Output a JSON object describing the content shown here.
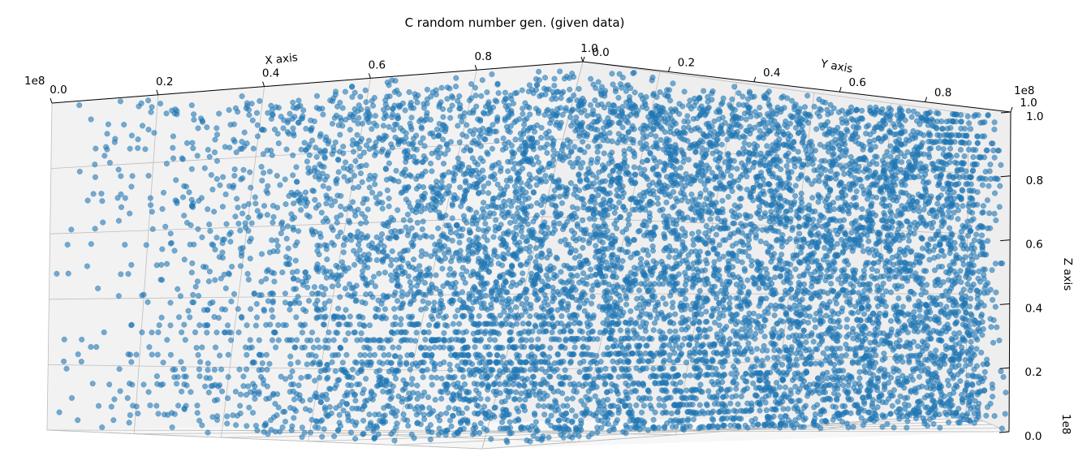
{
  "chart_data": {
    "type": "scatter",
    "dimensions": 3,
    "title": "C random number gen. (given data)",
    "xlabel": "X axis",
    "ylabel": "Y axis",
    "zlabel": "Z axis",
    "x_ticks": [
      "0.0",
      "0.2",
      "0.4",
      "0.6",
      "0.8",
      "1.0"
    ],
    "y_ticks": [
      "0.0",
      "0.2",
      "0.4",
      "0.6",
      "0.8",
      "1.0"
    ],
    "z_ticks": [
      "0.0",
      "0.2",
      "0.4",
      "0.6",
      "0.8",
      "1.0"
    ],
    "x_offset_text": "1e8",
    "y_offset_text": "1e8",
    "z_offset_text": "1e8",
    "xlim": [
      0,
      100000000
    ],
    "ylim": [
      0,
      100000000
    ],
    "zlim": [
      0,
      100000000
    ],
    "grid": true,
    "marker_color": "#1f77b4",
    "point_distribution": "uniform random in [0, 1e8] on each axis, points concentrated on ~45 discrete z levels (visible horizontal bands)",
    "z_levels": 45
  }
}
